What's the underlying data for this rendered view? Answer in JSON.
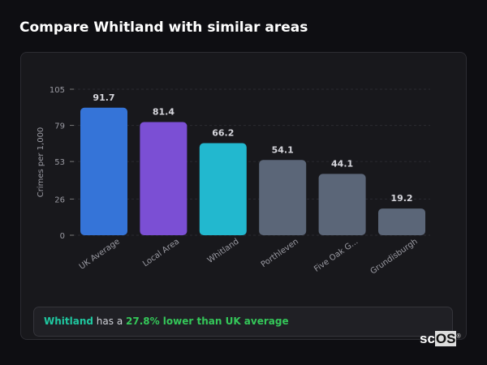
{
  "title": "Compare Whitland with similar areas",
  "chart_data": {
    "type": "bar",
    "categories": [
      "UK Average",
      "Local Area",
      "Whitland",
      "Porthleven",
      "Five Oak G...",
      "Grundisburgh"
    ],
    "values": [
      91.7,
      81.4,
      66.2,
      54.1,
      44.1,
      19.2
    ],
    "colors": [
      "#3574d8",
      "#7b4fd4",
      "#22b8cf",
      "#5b6678",
      "#5b6678",
      "#5b6678"
    ],
    "ylabel": "Crimes per 1,000",
    "yticks": [
      0,
      26,
      53,
      79,
      105
    ],
    "ylim": [
      0,
      105
    ],
    "grid": true
  },
  "footer": {
    "place": "Whitland",
    "pre": " has a ",
    "stat": "27.8% lower than UK average"
  },
  "logo": {
    "text1": "sc",
    "text2": "OS",
    "mark": "®"
  }
}
